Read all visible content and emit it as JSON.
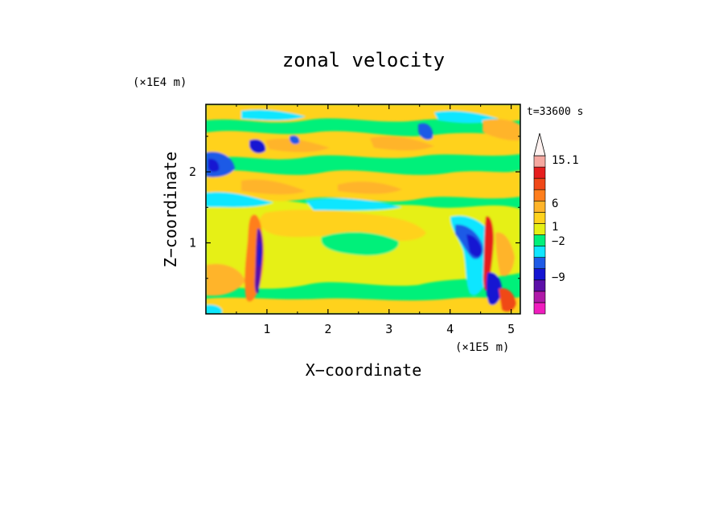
{
  "chart_data": {
    "type": "heatmap",
    "title": "zonal velocity",
    "xlabel": "X−coordinate",
    "ylabel": "Z−coordinate",
    "x_scale_label": "(×1E5 m)",
    "y_scale_label": "(×1E4 m)",
    "time_label": "t=33600 s",
    "xlim": [
      0,
      5.15
    ],
    "ylim": [
      0,
      2.95
    ],
    "x_ticks": [
      1,
      2,
      3,
      4,
      5
    ],
    "y_ticks": [
      1,
      2
    ],
    "x_tick_labels": [
      "1",
      "2",
      "3",
      "4",
      "5"
    ],
    "y_tick_labels": [
      "1",
      "2"
    ],
    "colorbar": {
      "levels": [
        "15.1",
        "6",
        "1",
        "−2",
        "−9"
      ],
      "colors": [
        "#f01dbe",
        "#b019a8",
        "#5c0fa8",
        "#1414d2",
        "#1e5ae6",
        "#0fe6ff",
        "#00f07a",
        "#e6f015",
        "#ffd21c",
        "#ffb429",
        "#ff7e1c",
        "#f04818",
        "#e61e1e",
        "#f5a8a0",
        "#fff2f0"
      ]
    },
    "bands": [
      {
        "z": [
          0.0,
          0.35
        ],
        "level": "green"
      },
      {
        "z": [
          0.35,
          0.9
        ],
        "level": "yellow"
      },
      {
        "z": [
          0.9,
          1.3
        ],
        "level": "yellow"
      },
      {
        "z": [
          1.3,
          1.6
        ],
        "level": "orange"
      },
      {
        "z": [
          1.6,
          2.0
        ],
        "level": "green"
      },
      {
        "z": [
          2.0,
          2.5
        ],
        "level": "orange"
      },
      {
        "z": [
          2.5,
          2.95
        ],
        "level": "green"
      }
    ]
  }
}
